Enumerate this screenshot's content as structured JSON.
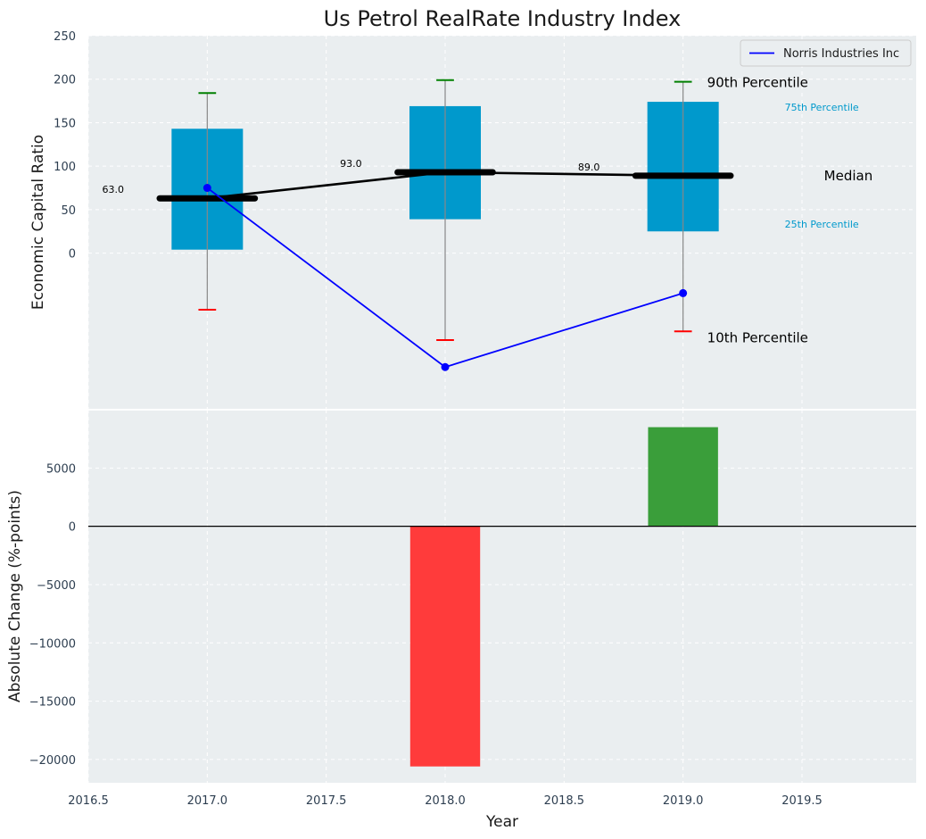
{
  "chart_data": [
    {
      "type": "box",
      "title": "Us Petrol RealRate Industry Index",
      "xlabel": "",
      "ylabel": "Economic Capital Ratio",
      "ylim": [
        -180,
        250
      ],
      "yticks": [
        0,
        50,
        100,
        150,
        200,
        250
      ],
      "years": [
        2017.0,
        2018.0,
        2019.0
      ],
      "p10": [
        -65,
        -100,
        -90
      ],
      "p25": [
        4,
        39,
        25
      ],
      "median": [
        63,
        93,
        89
      ],
      "p75": [
        143,
        169,
        174
      ],
      "p90": [
        184,
        199,
        197
      ],
      "median_labels": [
        "63.0",
        "93.0",
        "89.0"
      ],
      "company": {
        "name": "Norris Industries Inc",
        "values": [
          75,
          -131,
          -46
        ]
      },
      "annotations": {
        "p90": "90th Percentile",
        "p75": "75th Percentile",
        "median": "Median",
        "p25": "25th Percentile",
        "p10": "10th Percentile"
      },
      "colors": {
        "box": "#0099cc",
        "median_line": "#000000",
        "company": "#0000ff",
        "p90_cap": "#008000",
        "p10_cap": "#ff0000",
        "annotation_small": "#0099cc",
        "background": "#eaeef0"
      }
    },
    {
      "type": "bar",
      "xlabel": "Year",
      "ylabel": "Absolute Change (%-points)",
      "x": [
        2018.0,
        2019.0
      ],
      "values": [
        -20600,
        8500
      ],
      "ylim": [
        -22000,
        10000
      ],
      "yticks": [
        -20000,
        -15000,
        -10000,
        -5000,
        0,
        5000
      ],
      "xlim": [
        2016.5,
        2019.98
      ],
      "xticks": [
        2016.5,
        2017.0,
        2017.5,
        2018.0,
        2018.5,
        2019.0,
        2019.5
      ],
      "xtick_labels": [
        "2016.5",
        "2017.0",
        "2017.5",
        "2018.0",
        "2018.5",
        "2019.0",
        "2019.5"
      ],
      "ytick_labels": [
        "−20000",
        "−15000",
        "−10000",
        "−5000",
        "0",
        "5000"
      ],
      "colors": {
        "negative": "#ff3b3b",
        "positive": "#3a9e3a",
        "background": "#eaeef0"
      }
    }
  ]
}
